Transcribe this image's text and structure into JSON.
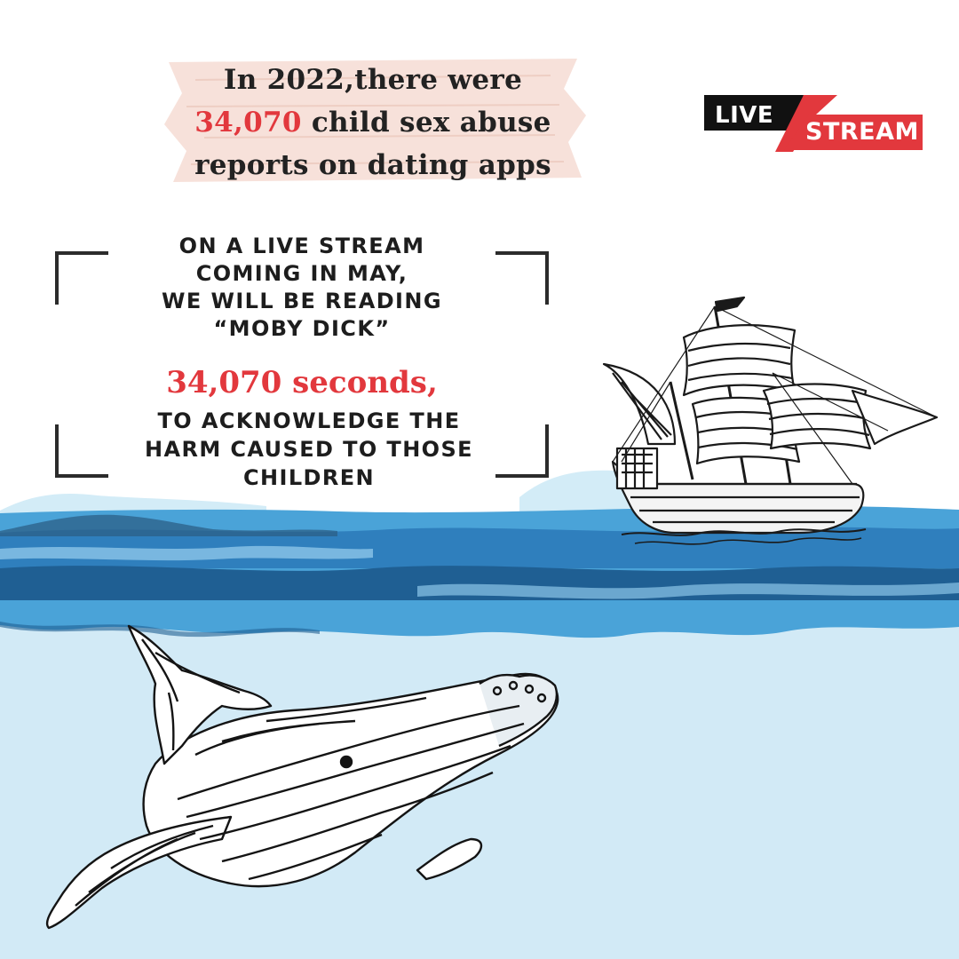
{
  "headline": {
    "line1": "In 2022,there were",
    "number": "34,070",
    "line2_rest": " child sex abuse",
    "line3": "reports on dating apps"
  },
  "badge": {
    "live": "LIVE",
    "stream": "STREAM"
  },
  "announcement": {
    "lines": [
      "ON A LIVE STREAM",
      "COMING IN MAY,",
      "WE WILL BE READING",
      "“MOBY DICK”"
    ],
    "duration": "34,070 seconds,",
    "tail_lines": [
      "TO ACKNOWLEDGE THE",
      "HARM CAUSED TO THOSE",
      "CHILDREN"
    ]
  },
  "colors": {
    "accent_red": "#e2383d",
    "ink": "#1d1d1d",
    "sea_light": "#d4ebf6",
    "sea_mid": "#3d8fc6",
    "sea_dark": "#1f5f93",
    "paper_tape": "#f6dcd3"
  },
  "illustrations": [
    "sailing-ship",
    "humpback-whale",
    "ocean-waves"
  ]
}
